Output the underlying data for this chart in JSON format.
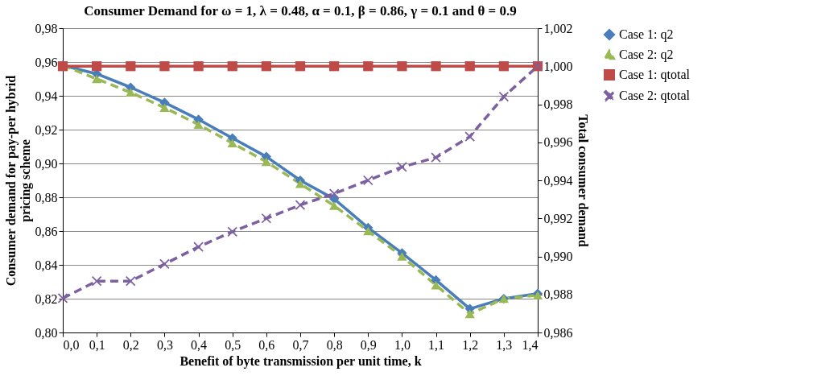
{
  "chart_data": {
    "type": "line",
    "title": "Consumer Demand for ω = 1, λ = 0.48, α = 0.1, β = 0.86, γ = 0.1 and θ = 0.9",
    "xlabel": "Benefit of byte transmission per unit time, k",
    "ylabel": "Consumer demand for pay-per hybrid\npricing scheme",
    "y2label": "Total consumer demand",
    "categories": [
      "0,0",
      "0,1",
      "0,2",
      "0,3",
      "0,4",
      "0,5",
      "0,6",
      "0,7",
      "0,8",
      "0,9",
      "1,0",
      "1,1",
      "1,2",
      "1,3",
      "1,4"
    ],
    "ylim": [
      0.8,
      0.98
    ],
    "yticks": [
      {
        "value": 0.8,
        "label": "0,80"
      },
      {
        "value": 0.82,
        "label": "0,82"
      },
      {
        "value": 0.84,
        "label": "0,84"
      },
      {
        "value": 0.86,
        "label": "0,86"
      },
      {
        "value": 0.88,
        "label": "0,88"
      },
      {
        "value": 0.9,
        "label": "0,90"
      },
      {
        "value": 0.92,
        "label": "0,92"
      },
      {
        "value": 0.94,
        "label": "0,94"
      },
      {
        "value": 0.96,
        "label": "0,96"
      },
      {
        "value": 0.98,
        "label": "0,98"
      }
    ],
    "y2lim": [
      0.986,
      1.002
    ],
    "y2ticks": [
      {
        "value": 0.986,
        "label": "0,986"
      },
      {
        "value": 0.988,
        "label": "0,988"
      },
      {
        "value": 0.99,
        "label": "0,990"
      },
      {
        "value": 0.992,
        "label": "0,992"
      },
      {
        "value": 0.994,
        "label": "0,994"
      },
      {
        "value": 0.996,
        "label": "0,996"
      },
      {
        "value": 0.998,
        "label": "0,998"
      },
      {
        "value": 1.0,
        "label": "1,000"
      },
      {
        "value": 1.002,
        "label": "1,002"
      }
    ],
    "grid": "y",
    "legend": "right",
    "series": [
      {
        "name": "Case 1: q2",
        "color": "#4a7ebb",
        "marker": "diamond",
        "line_style": "solid",
        "values": [
          0.958,
          0.953,
          0.945,
          0.936,
          0.926,
          0.915,
          0.904,
          0.89,
          0.879,
          0.862,
          0.847,
          0.831,
          0.814,
          0.82,
          0.823
        ]
      },
      {
        "name": "Case 2: q2",
        "color": "#98b954",
        "marker": "triangle",
        "line_style": "dashed",
        "values": [
          0.958,
          0.95,
          0.942,
          0.933,
          0.923,
          0.912,
          0.901,
          0.888,
          0.875,
          0.86,
          0.845,
          0.828,
          0.811,
          0.82,
          0.822
        ]
      },
      {
        "name": "Case 1: qtotal",
        "color": "#be4b48",
        "marker": "square",
        "line_style": "solid",
        "axis": "y2",
        "values": [
          1.0,
          1.0,
          1.0,
          1.0,
          1.0,
          1.0,
          1.0,
          1.0,
          1.0,
          1.0,
          1.0,
          1.0,
          1.0,
          1.0,
          1.0
        ]
      },
      {
        "name": "Case 2: qtotal",
        "color": "#7d60a0",
        "marker": "cross",
        "line_style": "dashed",
        "axis": "y2",
        "values": [
          0.9878,
          0.9887,
          0.9887,
          0.9896,
          0.9905,
          0.9913,
          0.992,
          0.9927,
          0.9933,
          0.994,
          0.9947,
          0.9952,
          0.9963,
          0.9984,
          1.0
        ]
      }
    ]
  }
}
